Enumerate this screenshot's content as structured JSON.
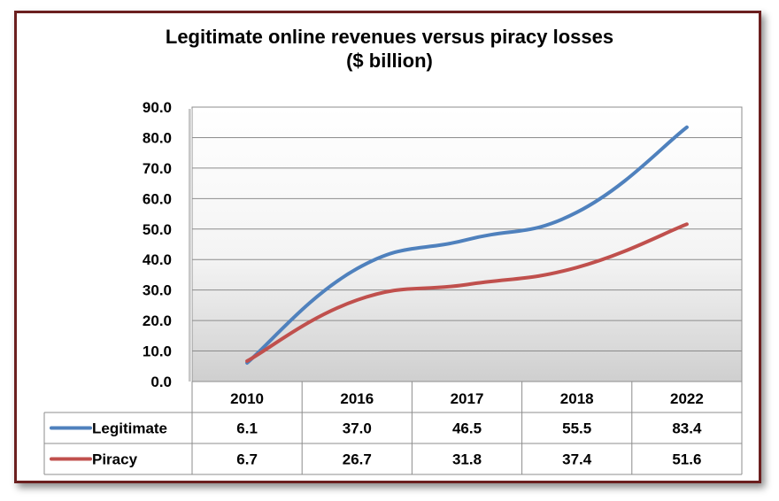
{
  "chart_data": {
    "type": "line",
    "title_line1": "Legitimate online revenues versus piracy losses",
    "title_line2": "($ billion)",
    "categories": [
      "2010",
      "2016",
      "2017",
      "2018",
      "2022"
    ],
    "ylim": [
      0,
      90
    ],
    "yticks": [
      "0.0",
      "10.0",
      "20.0",
      "30.0",
      "40.0",
      "50.0",
      "60.0",
      "70.0",
      "80.0",
      "90.0"
    ],
    "grid": true,
    "legend": "data-table",
    "series": [
      {
        "name": "Legitimate",
        "values": [
          6.1,
          37.0,
          46.5,
          55.5,
          83.4
        ],
        "labels": [
          "6.1",
          "37.0",
          "46.5",
          "55.5",
          "83.4"
        ],
        "color": "#4f81bd"
      },
      {
        "name": "Piracy",
        "values": [
          6.7,
          26.7,
          31.8,
          37.4,
          51.6
        ],
        "labels": [
          "6.7",
          "26.7",
          "31.8",
          "37.4",
          "51.6"
        ],
        "color": "#c0504d"
      }
    ]
  }
}
